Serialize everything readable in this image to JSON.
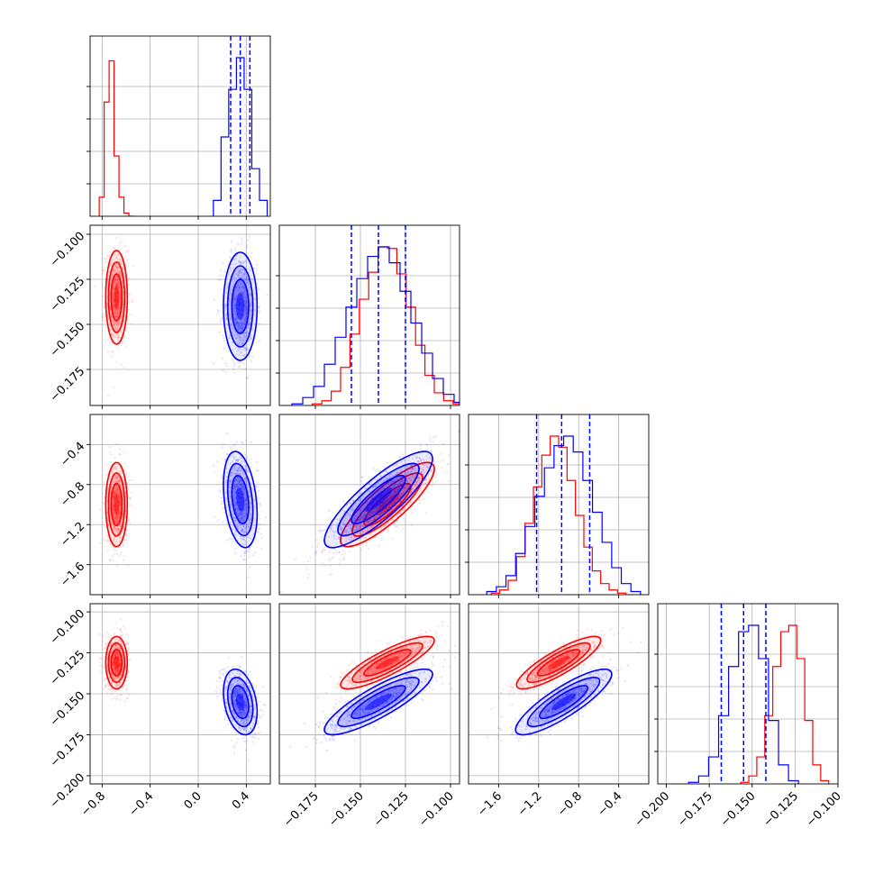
{
  "colors": {
    "red": "#ff0000",
    "blue": "#0000ff",
    "grid": "#b0b0b0",
    "frame": "#000000"
  },
  "chart_data": {
    "type": "corner",
    "grid": true,
    "n_params": 4,
    "series": [
      {
        "name": "",
        "color": "#ff0000",
        "mean": [
          -0.68,
          -0.135,
          -1.0,
          -0.131
        ],
        "std": [
          0.045,
          0.013,
          0.21,
          0.008
        ],
        "hist": [
          [
            0.12,
            0.72,
            0.98,
            0.38,
            0.12,
            0.02,
            0.0
          ],
          [
            0.01,
            0.03,
            0.09,
            0.24,
            0.45,
            0.67,
            0.84,
            1.0,
            0.99,
            0.83,
            0.62,
            0.38,
            0.19,
            0.08,
            0.03,
            0.01
          ],
          [
            0.01,
            0.03,
            0.09,
            0.24,
            0.45,
            0.68,
            0.88,
            1.0,
            0.93,
            0.72,
            0.5,
            0.3,
            0.15,
            0.07,
            0.03,
            0.01
          ],
          [
            0.01,
            0.05,
            0.17,
            0.43,
            0.74,
            0.96,
            1.0,
            0.79,
            0.4,
            0.12,
            0.02
          ]
        ]
      },
      {
        "name": "",
        "color": "#0000ff",
        "mean": [
          0.35,
          -0.14,
          -0.95,
          -0.155
        ],
        "std": [
          0.07,
          0.015,
          0.24,
          0.01
        ],
        "hist": [
          [
            0.1,
            0.5,
            0.8,
            1.0,
            0.8,
            0.3,
            0.1
          ],
          [
            0.01,
            0.05,
            0.12,
            0.26,
            0.43,
            0.62,
            0.8,
            0.94,
            1.0,
            0.9,
            0.72,
            0.52,
            0.33,
            0.17,
            0.07,
            0.02
          ],
          [
            0.02,
            0.05,
            0.12,
            0.26,
            0.43,
            0.62,
            0.8,
            0.94,
            1.0,
            0.9,
            0.72,
            0.52,
            0.33,
            0.17,
            0.07,
            0.02
          ],
          [
            0.01,
            0.05,
            0.17,
            0.43,
            0.74,
            0.96,
            1.0,
            0.79,
            0.4,
            0.12,
            0.02
          ]
        ]
      }
    ],
    "quantiles_blue": [
      [
        0.27,
        0.35,
        0.43
      ],
      [
        -0.155,
        -0.14,
        -0.125
      ],
      [
        -1.22,
        -0.97,
        -0.69
      ],
      [
        -0.168,
        -0.155,
        -0.142
      ]
    ],
    "correlations": {
      "0-1": [
        0.0,
        0.0
      ],
      "0-2": [
        0.0,
        -0.3
      ],
      "0-3": [
        0.0,
        -0.3
      ],
      "1-2": [
        0.85,
        0.85
      ],
      "1-3": [
        0.85,
        0.85
      ],
      "2-3": [
        0.85,
        0.85
      ]
    },
    "axes": [
      {
        "range": [
          -0.9,
          0.6
        ],
        "ticks": [
          "−0.8",
          "−0.4",
          "0.0",
          "0.4"
        ],
        "tick_values": [
          -0.8,
          -0.4,
          0.0,
          0.4
        ]
      },
      {
        "range": [
          -0.195,
          -0.095
        ],
        "ticks": [
          "−0.175",
          "−0.150",
          "−0.125",
          "−0.100"
        ],
        "tick_values": [
          -0.175,
          -0.15,
          -0.125,
          -0.1
        ]
      },
      {
        "range": [
          -1.9,
          -0.1
        ],
        "ticks": [
          "−1.6",
          "−1.2",
          "−0.8",
          "−0.4"
        ],
        "tick_values": [
          -1.6,
          -1.2,
          -0.8,
          -0.4
        ]
      },
      {
        "range": [
          -0.205,
          -0.1
        ],
        "ticks": [
          "−0.200",
          "−0.175",
          "−0.150",
          "−0.125",
          "−0.100"
        ],
        "tick_values": [
          -0.2,
          -0.175,
          -0.15,
          -0.125,
          -0.1
        ]
      }
    ],
    "row_axes": [
      null,
      {
        "range": [
          -0.195,
          -0.095
        ],
        "ticks": [
          "−0.100",
          "−0.125",
          "−0.150",
          "−0.175"
        ],
        "tick_values": [
          -0.1,
          -0.125,
          -0.15,
          -0.175
        ]
      },
      {
        "range": [
          -1.9,
          -0.1
        ],
        "ticks": [
          "−0.4",
          "−0.8",
          "−1.2",
          "−1.6"
        ],
        "tick_values": [
          -0.4,
          -0.8,
          -1.2,
          -1.6
        ]
      },
      {
        "range": [
          -0.205,
          -0.095
        ],
        "ticks": [
          "−0.100",
          "−0.125",
          "−0.150",
          "−0.175",
          "−0.200"
        ],
        "tick_values": [
          -0.1,
          -0.125,
          -0.15,
          -0.175,
          -0.2
        ]
      }
    ]
  }
}
